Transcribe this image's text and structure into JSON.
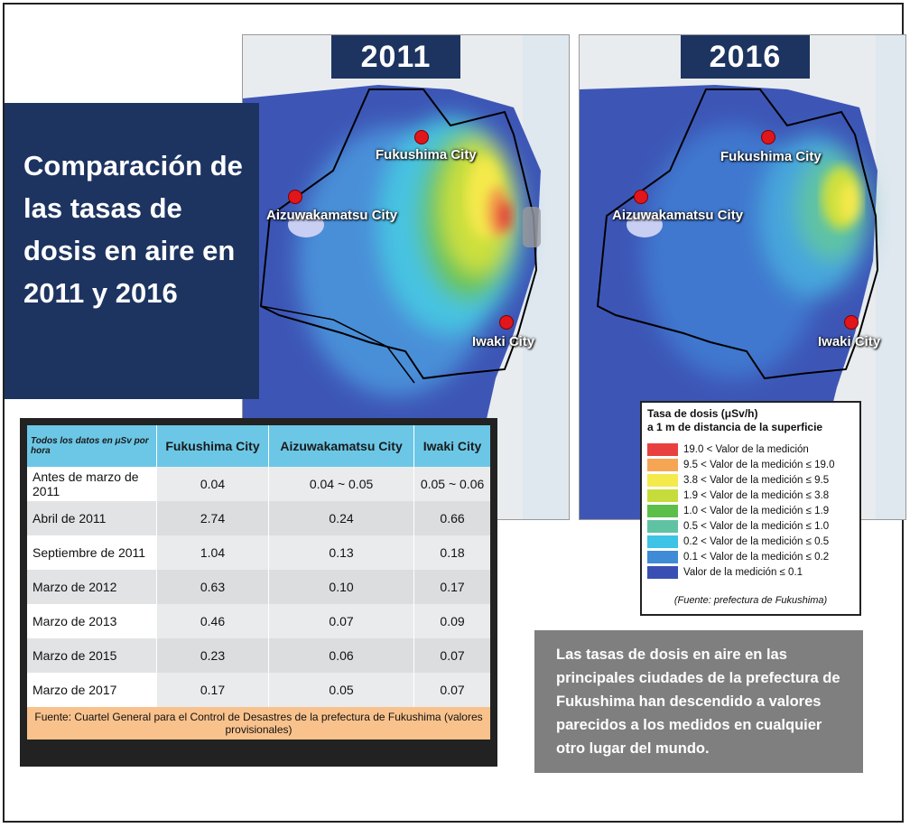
{
  "title": "Comparación de las tasas de dosis en aire en 2011 y 2016",
  "maps": [
    {
      "year": "2011",
      "cities": [
        "Fukushima City",
        "Aizuwakamatsu City",
        "Iwaki City"
      ]
    },
    {
      "year": "2016",
      "cities": [
        "Fukushima City",
        "Aizuwakamatsu City",
        "Iwaki City"
      ]
    }
  ],
  "table": {
    "corner": "Todos los datos en μSv por hora",
    "headers": [
      "Fukushima City",
      "Aizuwakamatsu City",
      "Iwaki City"
    ],
    "rows": [
      {
        "label": "Antes de marzo de 2011",
        "values": [
          "0.04",
          "0.04 ~ 0.05",
          "0.05 ~ 0.06"
        ]
      },
      {
        "label": "Abril de 2011",
        "values": [
          "2.74",
          "0.24",
          "0.66"
        ]
      },
      {
        "label": "Septiembre de 2011",
        "values": [
          "1.04",
          "0.13",
          "0.18"
        ]
      },
      {
        "label": "Marzo de 2012",
        "values": [
          "0.63",
          "0.10",
          "0.17"
        ]
      },
      {
        "label": "Marzo de 2013",
        "values": [
          "0.46",
          "0.07",
          "0.09"
        ]
      },
      {
        "label": "Marzo de 2015",
        "values": [
          "0.23",
          "0.06",
          "0.07"
        ]
      },
      {
        "label": "Marzo de 2017",
        "values": [
          "0.17",
          "0.05",
          "0.07"
        ]
      }
    ],
    "source": "Fuente: Cuartel General para el Control de Desastres de la prefectura de Fukushima (valores provisionales)"
  },
  "legend": {
    "title_line1": "Tasa de dosis (μSv/h)",
    "title_line2": "a 1 m de distancia de la superficie",
    "items": [
      {
        "color": "#e8403f",
        "text": "19.0 < Valor de la medición"
      },
      {
        "color": "#f6a553",
        "text": "9.5 < Valor de la medición ≤ 19.0"
      },
      {
        "color": "#f4ea4c",
        "text": "3.8 < Valor de la medición ≤  9.5"
      },
      {
        "color": "#c6dc3b",
        "text": "1.9 < Valor de la medición ≤  3.8"
      },
      {
        "color": "#5cbf4a",
        "text": "1.0 < Valor de la medición ≤  1.9"
      },
      {
        "color": "#5fc3a3",
        "text": "0.5 < Valor de la medición ≤  1.0"
      },
      {
        "color": "#3cc3e6",
        "text": "0.2 < Valor de la medición ≤  0.5"
      },
      {
        "color": "#3f8bd6",
        "text": "0.1 < Valor de la medición ≤  0.2"
      },
      {
        "color": "#3a4fb4",
        "text": "Valor de la medición ≤  0.1"
      }
    ],
    "source": "(Fuente: prefectura de Fukushima)"
  },
  "note": "Las tasas de dosis en aire en las principales ciudades de la prefectura de Fukushima han descendido a valores parecidos a los medidos en cualquier otro lugar del mundo."
}
